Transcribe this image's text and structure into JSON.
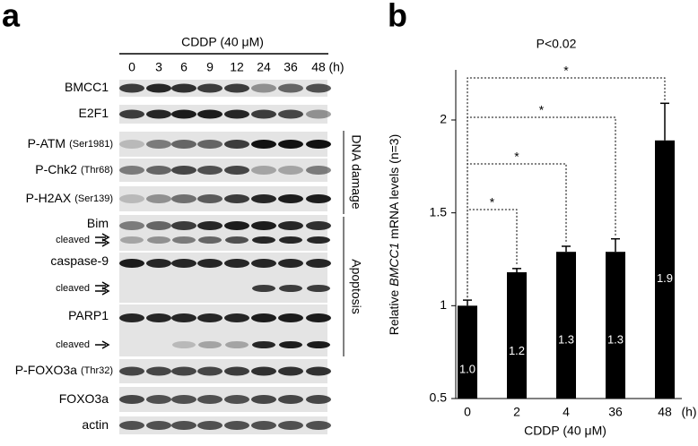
{
  "panel_a": {
    "label": "a",
    "treatment": "CDDP (40 μM)",
    "times": [
      "0",
      "3",
      "6",
      "9",
      "12",
      "24",
      "36",
      "48"
    ],
    "time_unit": "(h)",
    "rows": [
      {
        "label": "BMCC1"
      },
      {
        "label": "E2F1"
      },
      {
        "label": "P-ATM",
        "site": "(Ser1981)"
      },
      {
        "label": "P-Chk2",
        "site": "(Thr68)"
      },
      {
        "label": "P-H2AX",
        "site": "(Ser139)"
      },
      {
        "label": "Bim",
        "cleaved": "cleaved"
      },
      {
        "label": "caspase-9",
        "cleaved": "cleaved"
      },
      {
        "label": "PARP1",
        "cleaved": "cleaved"
      },
      {
        "label": "P-FOXO3a",
        "site": "(Thr32)"
      },
      {
        "label": "FOXO3a"
      },
      {
        "label": "actin"
      }
    ],
    "groups": [
      "DNA damage",
      "Apoptosis"
    ]
  },
  "chart_data": {
    "type": "bar",
    "panel_label": "b",
    "title": "P<0.02",
    "ylabel": [
      "Relative",
      "BMCC1",
      "mRNA levels (n=3)"
    ],
    "xlabel": "CDDP (40 μM)",
    "x_unit": "(h)",
    "categories": [
      "0",
      "2",
      "4",
      "36",
      "48"
    ],
    "values": [
      1.0,
      1.18,
      1.29,
      1.29,
      1.89
    ],
    "value_labels": [
      "1.0",
      "1.2",
      "1.3",
      "1.3",
      "1.9"
    ],
    "errors": [
      0.03,
      0.02,
      0.03,
      0.07,
      0.2
    ],
    "significance": [
      "*",
      "*",
      "*",
      "*"
    ],
    "color": "#000000",
    "ylim": [
      0.5,
      2.27
    ],
    "yticks": [
      0.5,
      1,
      1.5,
      2
    ]
  }
}
